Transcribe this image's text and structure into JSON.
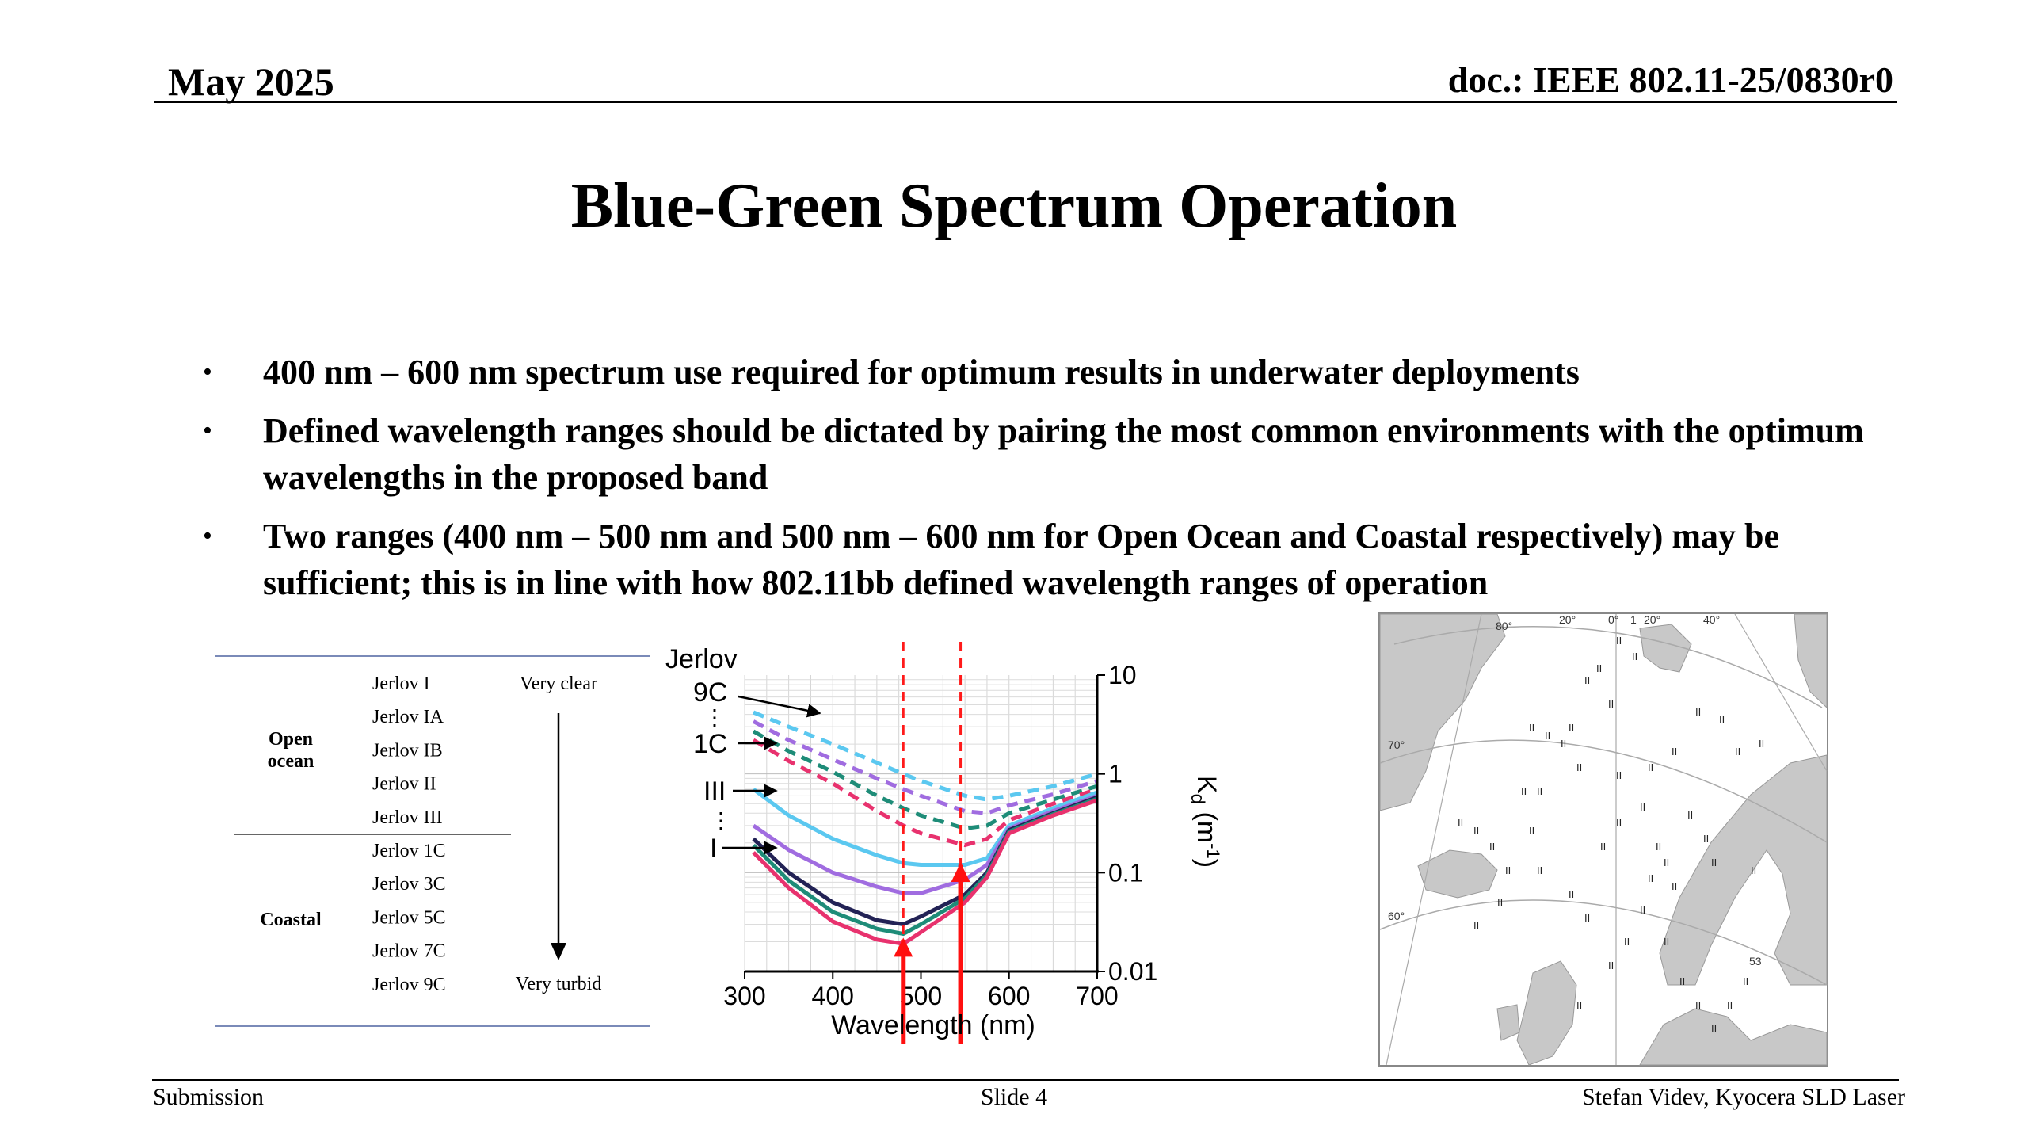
{
  "header": {
    "date": "May 2025",
    "doc": "doc.: IEEE 802.11-25/0830r0"
  },
  "title": "Blue-Green Spectrum Operation",
  "bullets": [
    "400 nm – 600 nm spectrum use required for optimum results in underwater deployments",
    "Defined wavelength ranges should be dictated by pairing the most common environments with the optimum wavelengths in the proposed band",
    "Two ranges (400 nm – 500 nm and 500 nm – 600 nm for Open Ocean and Coastal respectively) may be sufficient; this is in line with how 802.11bb defined wavelength ranges of operation"
  ],
  "jerlov_table": {
    "groups": [
      "Open ocean",
      "Coastal"
    ],
    "types": [
      "Jerlov I",
      "Jerlov IA",
      "Jerlov IB",
      "Jerlov II",
      "Jerlov III",
      "Jerlov 1C",
      "Jerlov 3C",
      "Jerlov 5C",
      "Jerlov 7C",
      "Jerlov 9C"
    ],
    "scale_top": "Very clear",
    "scale_bottom": "Very turbid"
  },
  "chart_data": {
    "type": "line",
    "xlabel": "Wavelength (nm)",
    "ylabel": "Kd (m-1)",
    "xlim": [
      300,
      700
    ],
    "ylim": [
      0.01,
      10
    ],
    "y_scale": "log",
    "x_ticks": [
      300,
      400,
      500,
      600,
      700
    ],
    "y_ticks": [
      10,
      1,
      0.1,
      0.01
    ],
    "y_tick_labels": [
      "10",
      "1",
      "0.1",
      "0.01"
    ],
    "grid": true,
    "legend_labels": [
      "Jerlov",
      "9C",
      "1C",
      "III",
      "I"
    ],
    "x": [
      310,
      350,
      400,
      450,
      480,
      500,
      550,
      575,
      600,
      650,
      700
    ],
    "series": [
      {
        "color": "#5bc8f0",
        "dashed": true,
        "values": [
          4.2,
          3.0,
          2.0,
          1.3,
          1.0,
          0.85,
          0.6,
          0.55,
          0.6,
          0.75,
          1.0
        ]
      },
      {
        "color": "#a06ce0",
        "dashed": true,
        "values": [
          3.4,
          2.2,
          1.4,
          0.9,
          0.7,
          0.6,
          0.42,
          0.4,
          0.48,
          0.62,
          0.85
        ]
      },
      {
        "color": "#1e8c78",
        "dashed": true,
        "values": [
          2.7,
          1.7,
          1.05,
          0.6,
          0.45,
          0.38,
          0.28,
          0.3,
          0.4,
          0.55,
          0.75
        ]
      },
      {
        "color": "#e8326e",
        "dashed": true,
        "values": [
          2.2,
          1.35,
          0.8,
          0.42,
          0.3,
          0.25,
          0.19,
          0.22,
          0.34,
          0.5,
          0.7
        ]
      },
      {
        "color": "#5bc8f0",
        "dashed": false,
        "values": [
          0.7,
          0.38,
          0.22,
          0.15,
          0.125,
          0.12,
          0.12,
          0.14,
          0.3,
          0.45,
          0.65
        ]
      },
      {
        "color": "#a06ce0",
        "dashed": false,
        "values": [
          0.3,
          0.17,
          0.1,
          0.072,
          0.062,
          0.062,
          0.085,
          0.12,
          0.28,
          0.42,
          0.6
        ]
      },
      {
        "color": "#222255",
        "dashed": false,
        "values": [
          0.22,
          0.1,
          0.05,
          0.033,
          0.03,
          0.036,
          0.06,
          0.1,
          0.27,
          0.4,
          0.58
        ]
      },
      {
        "color": "#1e8c78",
        "dashed": false,
        "values": [
          0.19,
          0.083,
          0.04,
          0.027,
          0.024,
          0.03,
          0.055,
          0.095,
          0.26,
          0.39,
          0.56
        ]
      },
      {
        "color": "#e8326e",
        "dashed": false,
        "values": [
          0.16,
          0.07,
          0.032,
          0.021,
          0.019,
          0.025,
          0.05,
          0.09,
          0.25,
          0.38,
          0.54
        ]
      }
    ],
    "markers": [
      {
        "x": 480,
        "style": "red-dashed-vertical"
      },
      {
        "x": 545,
        "style": "red-dashed-vertical"
      }
    ],
    "arrows": [
      {
        "x": 480,
        "to_y": 0.021
      },
      {
        "x": 545,
        "to_y": 0.12
      }
    ]
  },
  "map": {
    "labels": [
      "80°",
      "20°",
      "0°",
      "1",
      "20°",
      "40°",
      "70°",
      "60°",
      "53"
    ]
  },
  "footer": {
    "left": "Submission",
    "center": "Slide 4",
    "right": "Stefan Videv, Kyocera SLD Laser"
  }
}
